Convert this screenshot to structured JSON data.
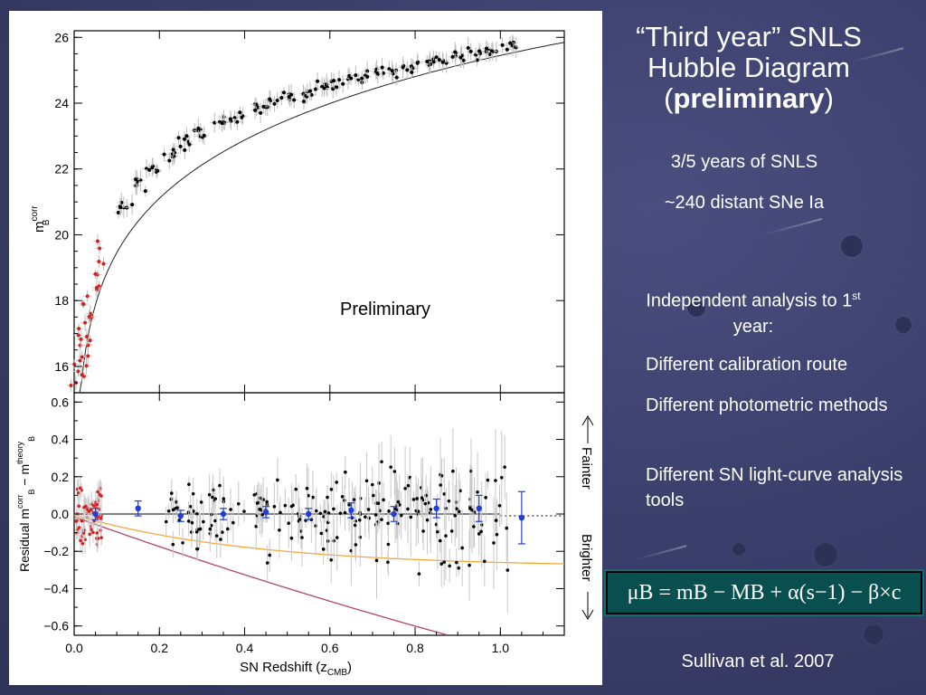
{
  "slide": {
    "title_line1": "“Third year” SNLS",
    "title_line2": "Hubble Diagram",
    "title_prelim": "preliminary",
    "bullet1": "3/5 years of SNLS",
    "bullet2": "~240 distant SNe Ia",
    "indep_line": "Independent analysis to 1",
    "indep_sup": "st",
    "indep_tail": "year:",
    "sub1": "Different calibration route",
    "sub2": "Different photometric methods",
    "sub3": "Different SN light-curve analysis tools",
    "equation": "μB = mB − MB + α(s−1) − β×c",
    "citation": "Sullivan et al. 2007"
  },
  "colors": {
    "background": "#3b3f6c",
    "equation_box": "#0a4f4f",
    "model_orange": "#f4a736",
    "model_magenta": "#b0476b",
    "low_z_red": "#d62020",
    "binned_blue": "#1f3fd8"
  },
  "chart_data": [
    {
      "type": "scatter",
      "title": "",
      "annotation": "Preliminary",
      "xlabel": "",
      "ylabel_main": "m",
      "ylabel_sup": "corr",
      "ylabel_sub": "B",
      "xlim": [
        0.0,
        1.15
      ],
      "ylim": [
        15.2,
        26.2
      ],
      "yticks": [
        "16",
        "18",
        "20",
        "22",
        "24",
        "26"
      ],
      "series": [
        {
          "name": "",
          "x": [
            0.01,
            0.012,
            0.014,
            0.016,
            0.018,
            0.02,
            0.022,
            0.025,
            0.028,
            0.03,
            0.033,
            0.036,
            0.04,
            0.045,
            0.05,
            0.06,
            0.07,
            0.12,
            0.15,
            0.18,
            0.22,
            0.26,
            0.3,
            0.34,
            0.38,
            0.42,
            0.46,
            0.5,
            0.54,
            0.58,
            0.62,
            0.66,
            0.7,
            0.74,
            0.78,
            0.82,
            0.86,
            0.9,
            0.94,
            0.98,
            1.02
          ],
          "y": [
            15.4,
            15.7,
            15.9,
            16.1,
            16.4,
            16.6,
            16.8,
            17.0,
            17.3,
            17.4,
            17.6,
            17.8,
            18.1,
            18.4,
            18.7,
            19.2,
            19.6,
            20.9,
            21.5,
            22.0,
            22.4,
            22.8,
            23.1,
            23.4,
            23.6,
            23.8,
            24.0,
            24.2,
            24.3,
            24.5,
            24.6,
            24.8,
            24.9,
            25.0,
            25.1,
            25.2,
            25.3,
            25.4,
            25.5,
            25.6,
            25.7
          ]
        }
      ]
    },
    {
      "type": "scatter",
      "xlabel": "SN Redshift (z",
      "xlabel_sub": "CMB",
      "ylabel": "Residual  m",
      "ylabel_sup1": "corr",
      "ylabel_sub1": "B",
      "ylabel_mid": " − m",
      "ylabel_sup2": "theory",
      "ylabel_sub2": "B",
      "xlim": [
        0.0,
        1.15
      ],
      "ylim": [
        -0.65,
        0.65
      ],
      "xticks": [
        "0.0",
        "0.2",
        "0.4",
        "0.6",
        "0.8",
        "1.0"
      ],
      "yticks": [
        "0.6",
        "0.4",
        "0.2",
        "0.0",
        "−0.2",
        "−0.4",
        "−0.6"
      ],
      "side_labels": {
        "top": "Fainter",
        "bottom": "Brighter"
      },
      "series": [
        {
          "name": "",
          "x": [
            0.05,
            0.15,
            0.25,
            0.35,
            0.45,
            0.55,
            0.65,
            0.75,
            0.85,
            0.95,
            1.05
          ],
          "y": [
            0.0,
            0.03,
            -0.01,
            0.0,
            0.01,
            0.0,
            0.02,
            0.0,
            0.03,
            0.03,
            -0.02
          ],
          "err": [
            0.03,
            0.04,
            0.03,
            0.03,
            0.03,
            0.03,
            0.04,
            0.04,
            0.05,
            0.07,
            0.14
          ]
        }
      ]
    }
  ]
}
